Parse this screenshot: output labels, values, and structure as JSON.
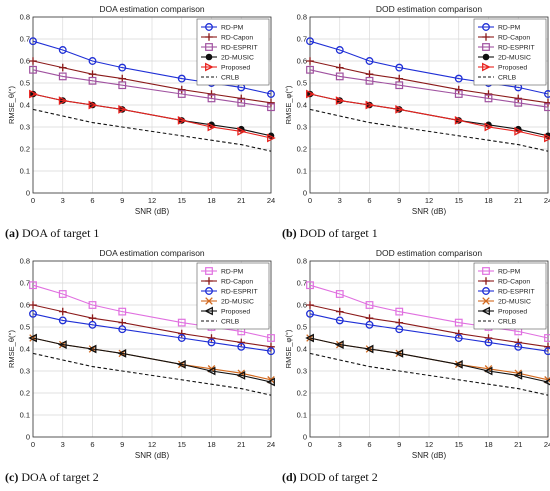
{
  "colors": {
    "blue": "#1f2fd6",
    "darkred": "#8b1a1a",
    "purple": "#a052a0",
    "black": "#111111",
    "red": "#e8231f",
    "magenta": "#e070e0",
    "orange": "#d2691e"
  },
  "chart_data": [
    {
      "type": "line",
      "title": "DOA estimation comparison",
      "xlabel": "SNR (dB)",
      "ylabel": "RMSE_θ(°)",
      "xlim": [
        0,
        24
      ],
      "ylim": [
        0,
        0.8
      ],
      "xticks": [
        "0",
        "3",
        "6",
        "9",
        "12",
        "15",
        "18",
        "21",
        "24"
      ],
      "yticks": [
        "0",
        "0.1",
        "0.2",
        "0.3",
        "0.4",
        "0.5",
        "0.6",
        "0.7",
        "0.8"
      ],
      "grid": true,
      "legend": "top-right",
      "caption_label": "(a)",
      "caption_text": "DOA of target 1",
      "series": [
        {
          "name": "RD-PM",
          "color": "#1f2fd6",
          "marker": "circle",
          "dash": "solid",
          "x": [
            0,
            3,
            6,
            9,
            15,
            18,
            21,
            24
          ],
          "values": [
            0.69,
            0.65,
            0.6,
            0.57,
            0.52,
            0.5,
            0.48,
            0.45
          ]
        },
        {
          "name": "RD-Capon",
          "color": "#8b1a1a",
          "marker": "plus",
          "dash": "solid",
          "x": [
            0,
            3,
            6,
            9,
            15,
            18,
            21,
            24
          ],
          "values": [
            0.6,
            0.57,
            0.54,
            0.52,
            0.47,
            0.45,
            0.43,
            0.41
          ]
        },
        {
          "name": "RD-ESPRIT",
          "color": "#a052a0",
          "marker": "square",
          "dash": "solid",
          "x": [
            0,
            3,
            6,
            9,
            15,
            18,
            21,
            24
          ],
          "values": [
            0.56,
            0.53,
            0.51,
            0.49,
            0.45,
            0.43,
            0.41,
            0.39
          ]
        },
        {
          "name": "2D-MUSIC",
          "color": "#111111",
          "marker": "dot",
          "dash": "solid",
          "x": [
            0,
            3,
            6,
            9,
            15,
            18,
            21,
            24
          ],
          "values": [
            0.45,
            0.42,
            0.4,
            0.38,
            0.33,
            0.31,
            0.29,
            0.26
          ]
        },
        {
          "name": "Proposed",
          "color": "#e8231f",
          "marker": "triangle-right",
          "dash": "solid",
          "x": [
            0,
            3,
            6,
            9,
            15,
            18,
            21,
            24
          ],
          "values": [
            0.45,
            0.42,
            0.4,
            0.38,
            0.33,
            0.3,
            0.28,
            0.25
          ]
        },
        {
          "name": "CRLB",
          "color": "#111111",
          "marker": "none",
          "dash": "dashed",
          "x": [
            0,
            3,
            6,
            9,
            15,
            18,
            21,
            24
          ],
          "values": [
            0.38,
            0.35,
            0.32,
            0.3,
            0.26,
            0.24,
            0.22,
            0.19
          ]
        }
      ]
    },
    {
      "type": "line",
      "title": "DOD estimation comparison",
      "xlabel": "SNR (dB)",
      "ylabel": "RMSE_φ(°)",
      "xlim": [
        0,
        24
      ],
      "ylim": [
        0,
        0.8
      ],
      "xticks": [
        "0",
        "3",
        "6",
        "9",
        "12",
        "15",
        "18",
        "21",
        "24"
      ],
      "yticks": [
        "0",
        "0.1",
        "0.2",
        "0.3",
        "0.4",
        "0.5",
        "0.6",
        "0.7",
        "0.8"
      ],
      "grid": true,
      "legend": "top-right",
      "caption_label": "(b)",
      "caption_text": "DOD of target 1",
      "series": [
        {
          "name": "RD-PM",
          "color": "#1f2fd6",
          "marker": "circle",
          "dash": "solid",
          "x": [
            0,
            3,
            6,
            9,
            15,
            18,
            21,
            24
          ],
          "values": [
            0.69,
            0.65,
            0.6,
            0.57,
            0.52,
            0.5,
            0.48,
            0.45
          ]
        },
        {
          "name": "RD-Capon",
          "color": "#8b1a1a",
          "marker": "plus",
          "dash": "solid",
          "x": [
            0,
            3,
            6,
            9,
            15,
            18,
            21,
            24
          ],
          "values": [
            0.6,
            0.57,
            0.54,
            0.52,
            0.47,
            0.45,
            0.43,
            0.41
          ]
        },
        {
          "name": "RD-ESPRIT",
          "color": "#a052a0",
          "marker": "square",
          "dash": "solid",
          "x": [
            0,
            3,
            6,
            9,
            15,
            18,
            21,
            24
          ],
          "values": [
            0.56,
            0.53,
            0.51,
            0.49,
            0.45,
            0.43,
            0.41,
            0.39
          ]
        },
        {
          "name": "2D-MUSIC",
          "color": "#111111",
          "marker": "dot",
          "dash": "solid",
          "x": [
            0,
            3,
            6,
            9,
            15,
            18,
            21,
            24
          ],
          "values": [
            0.45,
            0.42,
            0.4,
            0.38,
            0.33,
            0.31,
            0.29,
            0.26
          ]
        },
        {
          "name": "Proposed",
          "color": "#e8231f",
          "marker": "triangle-right",
          "dash": "solid",
          "x": [
            0,
            3,
            6,
            9,
            15,
            18,
            21,
            24
          ],
          "values": [
            0.45,
            0.42,
            0.4,
            0.38,
            0.33,
            0.3,
            0.28,
            0.25
          ]
        },
        {
          "name": "CRLB",
          "color": "#111111",
          "marker": "none",
          "dash": "dashed",
          "x": [
            0,
            3,
            6,
            9,
            15,
            18,
            21,
            24
          ],
          "values": [
            0.38,
            0.35,
            0.32,
            0.3,
            0.26,
            0.24,
            0.22,
            0.19
          ]
        }
      ]
    },
    {
      "type": "line",
      "title": "DOA estimation comparison",
      "xlabel": "SNR (dB)",
      "ylabel": "RMSE_θ(°)",
      "xlim": [
        0,
        24
      ],
      "ylim": [
        0,
        0.8
      ],
      "xticks": [
        "0",
        "3",
        "6",
        "9",
        "12",
        "15",
        "18",
        "21",
        "24"
      ],
      "yticks": [
        "0",
        "0.1",
        "0.2",
        "0.3",
        "0.4",
        "0.5",
        "0.6",
        "0.7",
        "0.8"
      ],
      "grid": true,
      "legend": "top-right",
      "caption_label": "(c)",
      "caption_text": "DOA of target 2",
      "series": [
        {
          "name": "RD-PM",
          "color": "#e070e0",
          "marker": "square",
          "dash": "solid",
          "x": [
            0,
            3,
            6,
            9,
            15,
            18,
            21,
            24
          ],
          "values": [
            0.69,
            0.65,
            0.6,
            0.57,
            0.52,
            0.5,
            0.48,
            0.45
          ]
        },
        {
          "name": "RD-Capon",
          "color": "#8b1a1a",
          "marker": "plus",
          "dash": "solid",
          "x": [
            0,
            3,
            6,
            9,
            15,
            18,
            21,
            24
          ],
          "values": [
            0.6,
            0.57,
            0.54,
            0.52,
            0.47,
            0.45,
            0.43,
            0.41
          ]
        },
        {
          "name": "RD-ESPRIT",
          "color": "#1f2fd6",
          "marker": "circle",
          "dash": "solid",
          "x": [
            0,
            3,
            6,
            9,
            15,
            18,
            21,
            24
          ],
          "values": [
            0.56,
            0.53,
            0.51,
            0.49,
            0.45,
            0.43,
            0.41,
            0.39
          ]
        },
        {
          "name": "2D-MUSIC",
          "color": "#d2691e",
          "marker": "x",
          "dash": "solid",
          "x": [
            0,
            3,
            6,
            9,
            15,
            18,
            21,
            24
          ],
          "values": [
            0.45,
            0.42,
            0.4,
            0.38,
            0.33,
            0.31,
            0.29,
            0.26
          ]
        },
        {
          "name": "Proposed",
          "color": "#111111",
          "marker": "triangle-left",
          "dash": "solid",
          "x": [
            0,
            3,
            6,
            9,
            15,
            18,
            21,
            24
          ],
          "values": [
            0.45,
            0.42,
            0.4,
            0.38,
            0.33,
            0.3,
            0.28,
            0.25
          ]
        },
        {
          "name": "CRLB",
          "color": "#111111",
          "marker": "none",
          "dash": "dashed",
          "x": [
            0,
            3,
            6,
            9,
            15,
            18,
            21,
            24
          ],
          "values": [
            0.38,
            0.35,
            0.32,
            0.3,
            0.26,
            0.24,
            0.22,
            0.19
          ]
        }
      ]
    },
    {
      "type": "line",
      "title": "DOD estimation comparison",
      "xlabel": "SNR (dB)",
      "ylabel": "RMSE_φ(°)",
      "xlim": [
        0,
        24
      ],
      "ylim": [
        0,
        0.8
      ],
      "xticks": [
        "0",
        "3",
        "6",
        "9",
        "12",
        "15",
        "18",
        "21",
        "24"
      ],
      "yticks": [
        "0",
        "0.1",
        "0.2",
        "0.3",
        "0.4",
        "0.5",
        "0.6",
        "0.7",
        "0.8"
      ],
      "grid": true,
      "legend": "top-right",
      "caption_label": "(d)",
      "caption_text": "DOD of target 2",
      "series": [
        {
          "name": "RD-PM",
          "color": "#e070e0",
          "marker": "square",
          "dash": "solid",
          "x": [
            0,
            3,
            6,
            9,
            15,
            18,
            21,
            24
          ],
          "values": [
            0.69,
            0.65,
            0.6,
            0.57,
            0.52,
            0.5,
            0.48,
            0.45
          ]
        },
        {
          "name": "RD-Capon",
          "color": "#8b1a1a",
          "marker": "plus",
          "dash": "solid",
          "x": [
            0,
            3,
            6,
            9,
            15,
            18,
            21,
            24
          ],
          "values": [
            0.6,
            0.57,
            0.54,
            0.52,
            0.47,
            0.45,
            0.43,
            0.41
          ]
        },
        {
          "name": "RD-ESPRIT",
          "color": "#1f2fd6",
          "marker": "circle",
          "dash": "solid",
          "x": [
            0,
            3,
            6,
            9,
            15,
            18,
            21,
            24
          ],
          "values": [
            0.56,
            0.53,
            0.51,
            0.49,
            0.45,
            0.43,
            0.41,
            0.39
          ]
        },
        {
          "name": "2D-MUSIC",
          "color": "#d2691e",
          "marker": "x",
          "dash": "solid",
          "x": [
            0,
            3,
            6,
            9,
            15,
            18,
            21,
            24
          ],
          "values": [
            0.45,
            0.42,
            0.4,
            0.38,
            0.33,
            0.31,
            0.29,
            0.26
          ]
        },
        {
          "name": "Proposed",
          "color": "#111111",
          "marker": "triangle-left",
          "dash": "solid",
          "x": [
            0,
            3,
            6,
            9,
            15,
            18,
            21,
            24
          ],
          "values": [
            0.45,
            0.42,
            0.4,
            0.38,
            0.33,
            0.3,
            0.28,
            0.25
          ]
        },
        {
          "name": "CRLB",
          "color": "#111111",
          "marker": "none",
          "dash": "dashed",
          "x": [
            0,
            3,
            6,
            9,
            15,
            18,
            21,
            24
          ],
          "values": [
            0.38,
            0.35,
            0.32,
            0.3,
            0.26,
            0.24,
            0.22,
            0.19
          ]
        }
      ]
    }
  ]
}
